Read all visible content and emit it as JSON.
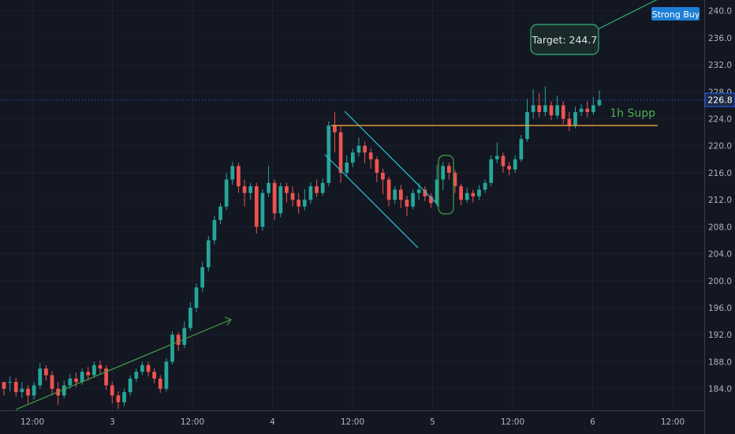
{
  "chart_data": {
    "type": "candlestick",
    "title": "",
    "ylim": [
      180.8,
      241.6
    ],
    "y_ticks": [
      "240.0",
      "236.0",
      "232.0",
      "228.0",
      "224.0",
      "220.0",
      "216.0",
      "212.0",
      "208.0",
      "204.0",
      "200.0",
      "196.0",
      "192.0",
      "188.0",
      "184.0"
    ],
    "x_ticks": [
      "12:00",
      "3",
      "12:00",
      "4",
      "12:00",
      "5",
      "12:00",
      "6",
      "12:00"
    ],
    "last_price": "226.8",
    "colors": {
      "background": "#131722",
      "up": "#26a69a",
      "down": "#ef5350",
      "support": "#f0a33a",
      "target_box": "#2e9b6e",
      "wedge": "#26c6da",
      "trend_arrow": "#43a047",
      "strong_buy_bg": "#1e7fd6",
      "price_tag_bg": "#1e2a44"
    },
    "support_level": 223.0,
    "support_label": "1h Supp",
    "target_label": "Target: 244.7",
    "badge_label": "Strong Buy",
    "candles": [
      [
        185.0,
        184.0,
        185.0,
        183.0
      ],
      [
        185.0,
        185.0,
        185.8,
        183.6
      ],
      [
        185.0,
        183.5,
        185.6,
        182.8
      ],
      [
        183.5,
        184.0,
        185.0,
        182.6
      ],
      [
        184.0,
        183.0,
        184.5,
        181.8
      ],
      [
        183.0,
        184.5,
        185.0,
        182.4
      ],
      [
        184.5,
        187.0,
        187.8,
        184.0
      ],
      [
        187.0,
        186.0,
        187.5,
        185.2
      ],
      [
        186.0,
        184.0,
        186.6,
        183.0
      ],
      [
        184.0,
        183.0,
        185.0,
        181.6
      ],
      [
        183.0,
        184.5,
        185.2,
        182.6
      ],
      [
        184.5,
        185.5,
        186.2,
        184.0
      ],
      [
        185.5,
        185.0,
        186.4,
        184.2
      ],
      [
        185.0,
        186.5,
        187.0,
        184.6
      ],
      [
        186.5,
        186.0,
        187.2,
        185.2
      ],
      [
        186.0,
        187.5,
        188.0,
        185.6
      ],
      [
        187.5,
        187.0,
        188.2,
        186.2
      ],
      [
        187.0,
        184.5,
        187.5,
        183.8
      ],
      [
        184.5,
        183.0,
        185.0,
        181.8
      ],
      [
        183.0,
        182.0,
        183.6,
        181.0
      ],
      [
        182.0,
        183.5,
        184.0,
        181.4
      ],
      [
        183.5,
        185.5,
        186.0,
        183.0
      ],
      [
        185.5,
        186.5,
        187.0,
        185.0
      ],
      [
        186.5,
        187.5,
        188.0,
        186.0
      ],
      [
        187.5,
        186.5,
        188.0,
        185.8
      ],
      [
        186.5,
        185.5,
        187.0,
        184.8
      ],
      [
        185.5,
        184.0,
        186.0,
        183.4
      ],
      [
        184.0,
        188.0,
        188.5,
        183.6
      ],
      [
        188.0,
        192.0,
        192.5,
        187.6
      ],
      [
        192.0,
        190.5,
        192.4,
        189.6
      ],
      [
        190.5,
        193.0,
        194.0,
        190.0
      ],
      [
        193.0,
        196.0,
        196.8,
        192.6
      ],
      [
        196.0,
        199.0,
        199.6,
        195.4
      ],
      [
        199.0,
        202.0,
        202.8,
        198.4
      ],
      [
        202.0,
        206.0,
        206.6,
        201.4
      ],
      [
        206.0,
        209.0,
        209.6,
        205.4
      ],
      [
        209.0,
        211.0,
        211.5,
        208.4
      ],
      [
        211.0,
        215.0,
        216.0,
        210.5
      ],
      [
        215.0,
        217.0,
        217.6,
        214.2
      ],
      [
        217.0,
        214.0,
        217.5,
        213.0
      ],
      [
        214.0,
        213.0,
        215.0,
        211.0
      ],
      [
        213.0,
        214.0,
        214.5,
        212.0
      ],
      [
        214.0,
        208.0,
        214.5,
        207.0
      ],
      [
        208.0,
        213.0,
        213.6,
        207.4
      ],
      [
        213.0,
        214.5,
        217.0,
        212.4
      ],
      [
        214.5,
        210.0,
        215.0,
        209.0
      ],
      [
        210.0,
        214.0,
        214.5,
        209.4
      ],
      [
        214.0,
        213.0,
        214.5,
        211.6
      ],
      [
        213.0,
        212.0,
        214.0,
        211.0
      ],
      [
        212.0,
        211.0,
        213.0,
        210.0
      ],
      [
        211.0,
        212.0,
        213.6,
        210.4
      ],
      [
        212.0,
        214.0,
        214.6,
        211.4
      ],
      [
        214.0,
        213.0,
        215.0,
        212.4
      ],
      [
        213.0,
        214.5,
        215.2,
        212.6
      ],
      [
        214.5,
        223.0,
        223.6,
        214.0
      ],
      [
        223.0,
        222.0,
        225.0,
        219.0
      ],
      [
        222.0,
        216.0,
        223.0,
        214.5
      ],
      [
        216.0,
        217.5,
        218.6,
        215.5
      ],
      [
        217.5,
        219.0,
        219.6,
        216.8
      ],
      [
        219.0,
        220.0,
        221.2,
        218.4
      ],
      [
        220.0,
        219.0,
        220.6,
        217.4
      ],
      [
        219.0,
        218.0,
        219.6,
        216.6
      ],
      [
        218.0,
        216.0,
        218.4,
        214.6
      ],
      [
        216.0,
        215.0,
        216.6,
        212.8
      ],
      [
        215.0,
        212.0,
        215.4,
        211.0
      ],
      [
        212.0,
        213.5,
        214.0,
        211.4
      ],
      [
        213.5,
        212.0,
        214.2,
        210.8
      ],
      [
        212.0,
        211.0,
        212.6,
        209.6
      ],
      [
        211.0,
        213.0,
        213.6,
        210.6
      ],
      [
        213.0,
        213.5,
        214.5,
        212.0
      ],
      [
        213.5,
        212.5,
        214.0,
        211.8
      ],
      [
        212.5,
        211.5,
        213.0,
        210.8
      ],
      [
        211.5,
        215.0,
        217.2,
        211.0
      ],
      [
        215.0,
        217.0,
        217.6,
        213.4
      ],
      [
        217.0,
        216.0,
        217.5,
        215.0
      ],
      [
        216.0,
        214.0,
        216.4,
        213.0
      ],
      [
        214.0,
        212.0,
        214.4,
        211.2
      ],
      [
        212.0,
        213.0,
        213.8,
        211.6
      ],
      [
        213.0,
        212.5,
        213.5,
        211.6
      ],
      [
        212.5,
        213.5,
        214.2,
        212.0
      ],
      [
        213.5,
        214.5,
        215.0,
        213.0
      ],
      [
        214.5,
        218.0,
        218.6,
        214.0
      ],
      [
        218.0,
        218.5,
        220.5,
        217.4
      ],
      [
        218.5,
        217.0,
        219.0,
        216.0
      ],
      [
        217.0,
        216.5,
        217.6,
        215.6
      ],
      [
        216.5,
        218.0,
        218.6,
        216.0
      ],
      [
        218.0,
        221.0,
        221.6,
        217.6
      ],
      [
        221.0,
        225.0,
        227.0,
        220.6
      ],
      [
        225.0,
        226.0,
        228.4,
        224.0
      ],
      [
        226.0,
        225.0,
        227.8,
        224.2
      ],
      [
        225.0,
        226.0,
        228.8,
        224.4
      ],
      [
        226.0,
        224.5,
        226.6,
        223.8
      ],
      [
        224.5,
        226.0,
        227.4,
        224.0
      ],
      [
        226.0,
        224.0,
        226.6,
        223.2
      ],
      [
        224.0,
        223.0,
        225.0,
        222.2
      ],
      [
        223.0,
        225.0,
        225.8,
        222.6
      ],
      [
        225.0,
        225.5,
        226.2,
        224.4
      ],
      [
        225.5,
        225.0,
        226.6,
        224.2
      ],
      [
        225.0,
        226.0,
        227.2,
        224.6
      ],
      [
        226.0,
        226.8,
        228.2,
        225.8
      ]
    ]
  }
}
